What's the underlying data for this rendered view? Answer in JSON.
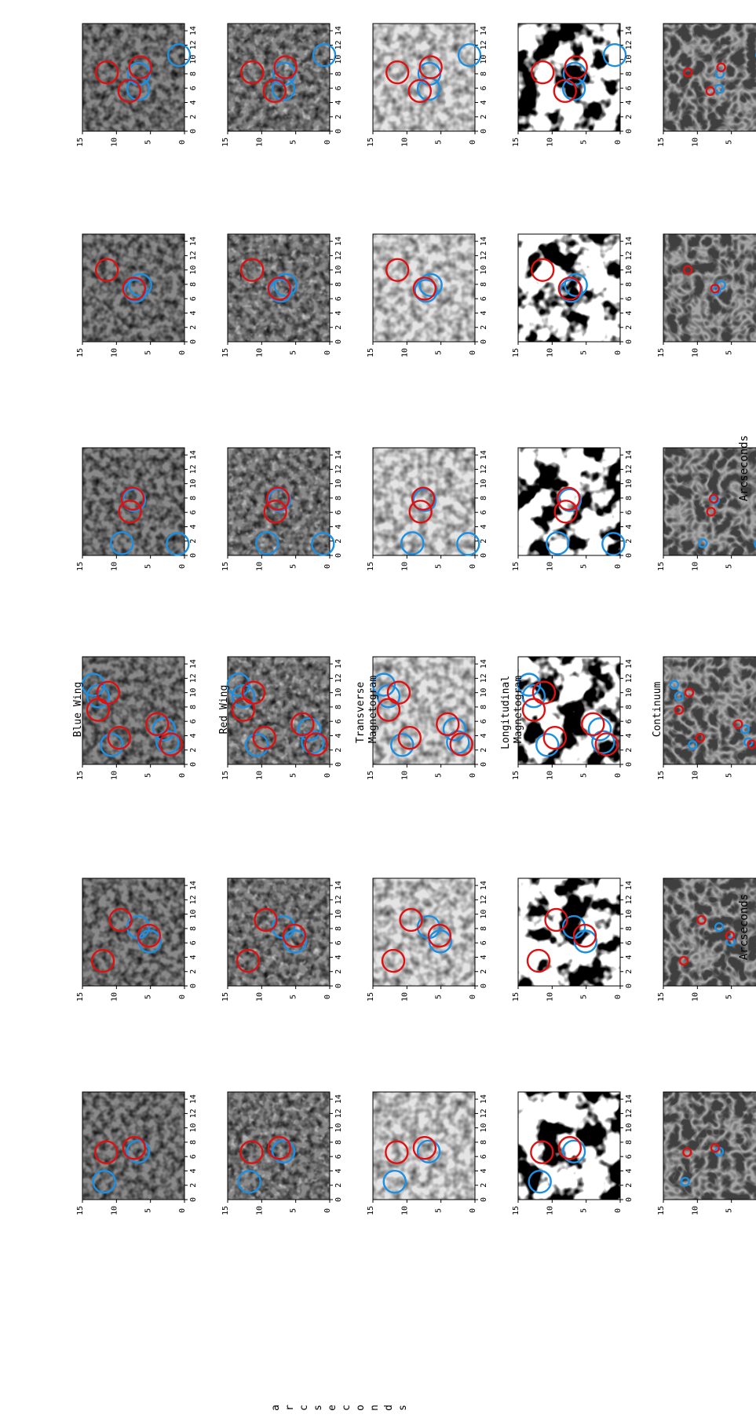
{
  "figure": {
    "row_labels": [
      "Blue Wing",
      "Red Wing",
      "Transverse Magnetogram",
      "Longitudinal Magnetogram",
      "Continuum"
    ],
    "axis_label_bottom": "Arcseconds",
    "axis_label_left": "Arcseconds",
    "tick_labels_axis1": [
      "0",
      "2",
      "4",
      "6",
      "8",
      "10",
      "12",
      "14"
    ],
    "tick_labels_axis2": [
      "0",
      "5",
      "10",
      "15"
    ],
    "colors": {
      "blue_circle": "#1a8fe3",
      "red_circle": "#e01010"
    }
  },
  "chart_data": {
    "type": "image-grid",
    "axis_range_arcsec": [
      0,
      15
    ],
    "groups": [
      {
        "panels": [
          "Blue Wing",
          "Red Wing",
          "Transverse Magnetogram",
          "Longitudinal Magnetogram",
          "Continuum"
        ],
        "sets": [
          {
            "blue": [
              [
                2.5,
                3.2
              ],
              [
                6.7,
                8.2
              ]
            ],
            "red": [
              [
                7.2,
                7.6
              ],
              [
                6.6,
                3.5
              ]
            ]
          },
          {
            "blue": [
              [
                6.2,
                9.9
              ],
              [
                8.2,
                8.2
              ]
            ],
            "red": [
              [
                7.0,
                9.8
              ],
              [
                9.2,
                5.6
              ],
              [
                3.5,
                3.0
              ]
            ]
          },
          {
            "blue": [
              [
                3.1,
                12.5
              ],
              [
                4.9,
                12.0
              ],
              [
                2.7,
                4.3
              ],
              [
                9.5,
                2.3
              ],
              [
                11.1,
                1.6
              ]
            ],
            "red": [
              [
                2.8,
                13.0
              ],
              [
                5.6,
                11.0
              ],
              [
                3.7,
                5.4
              ],
              [
                10.0,
                3.8
              ],
              [
                7.6,
                2.3
              ]
            ]
          }
        ]
      },
      {
        "panels": [
          "Blue Wing",
          "Red Wing",
          "Transverse Magnetogram",
          "Longitudinal Magnetogram",
          "Continuum"
        ],
        "sets": [
          {
            "blue": [
              [
                1.6,
                14.0
              ],
              [
                1.7,
                5.8
              ],
              [
                7.7,
                7.6
              ]
            ],
            "red": [
              [
                7.9,
                7.4
              ],
              [
                6.1,
                7.0
              ]
            ]
          },
          {
            "blue": [
              [
                7.9,
                8.5
              ],
              [
                7.1,
                7.8
              ]
            ],
            "red": [
              [
                7.4,
                7.6
              ],
              [
                10.0,
                3.6
              ]
            ]
          },
          {
            "blue": [
              [
                10.6,
                14.2
              ],
              [
                5.9,
                8.2
              ],
              [
                8.0,
                8.3
              ]
            ],
            "red": [
              [
                5.6,
                6.9
              ],
              [
                8.9,
                8.5
              ],
              [
                8.2,
                3.6
              ]
            ]
          }
        ]
      }
    ]
  }
}
